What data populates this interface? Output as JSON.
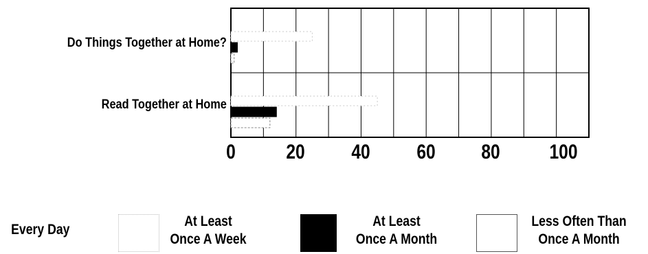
{
  "chart_data": {
    "type": "bar",
    "orientation": "horizontal",
    "categories": [
      "Do Things Together at Home?",
      "Read Together at Home"
    ],
    "series": [
      {
        "name": "Every Day",
        "values": [
          25,
          45
        ]
      },
      {
        "name": "At Least Once A Week",
        "values": [
          2,
          14
        ]
      },
      {
        "name": "At Least Once A Month",
        "values": [
          1,
          12
        ]
      }
    ],
    "xlim": [
      0,
      110
    ],
    "xticks": [
      "0",
      "20",
      "40",
      "60",
      "80",
      "100"
    ],
    "grid": true,
    "legend_position": "bottom",
    "legend": [
      {
        "line1": "Every Day",
        "line2": "",
        "style": "none"
      },
      {
        "line1": "At Least",
        "line2": "Once A Week",
        "style": "dotted"
      },
      {
        "line1": "At Least",
        "line2": "Once A Month",
        "style": "solid"
      },
      {
        "line1": "Less Often Than",
        "line2": "Once A Month",
        "style": "outline"
      }
    ],
    "colors": {
      "dotted": "#bbbbbb",
      "solid": "#000000",
      "outline": "#555555"
    }
  }
}
